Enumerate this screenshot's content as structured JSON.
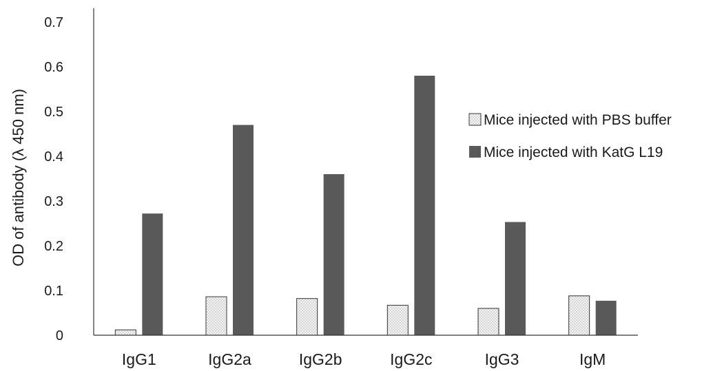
{
  "chart_data": {
    "type": "bar",
    "title": "",
    "xlabel": "",
    "ylabel": "OD of antibody (λ 450 nm)",
    "ylim": [
      0,
      0.7
    ],
    "yticks": [
      "0",
      "0.1",
      "0.2",
      "0.3",
      "0.4",
      "0.5",
      "0.6",
      "0.7"
    ],
    "grid": false,
    "legend_position": "right",
    "categories": [
      "IgG1",
      "IgG2a",
      "IgG2b",
      "IgG2c",
      "IgG3",
      "IgM"
    ],
    "series": [
      {
        "name": "Mice injected with PBS buffer",
        "pattern": "dotted",
        "color": "#f2f2f2",
        "values": [
          0.012,
          0.086,
          0.082,
          0.067,
          0.06,
          0.088
        ]
      },
      {
        "name": "Mice injected with KatG L19",
        "pattern": "solid",
        "color": "#595959",
        "values": [
          0.272,
          0.47,
          0.36,
          0.58,
          0.253,
          0.077
        ]
      }
    ]
  }
}
